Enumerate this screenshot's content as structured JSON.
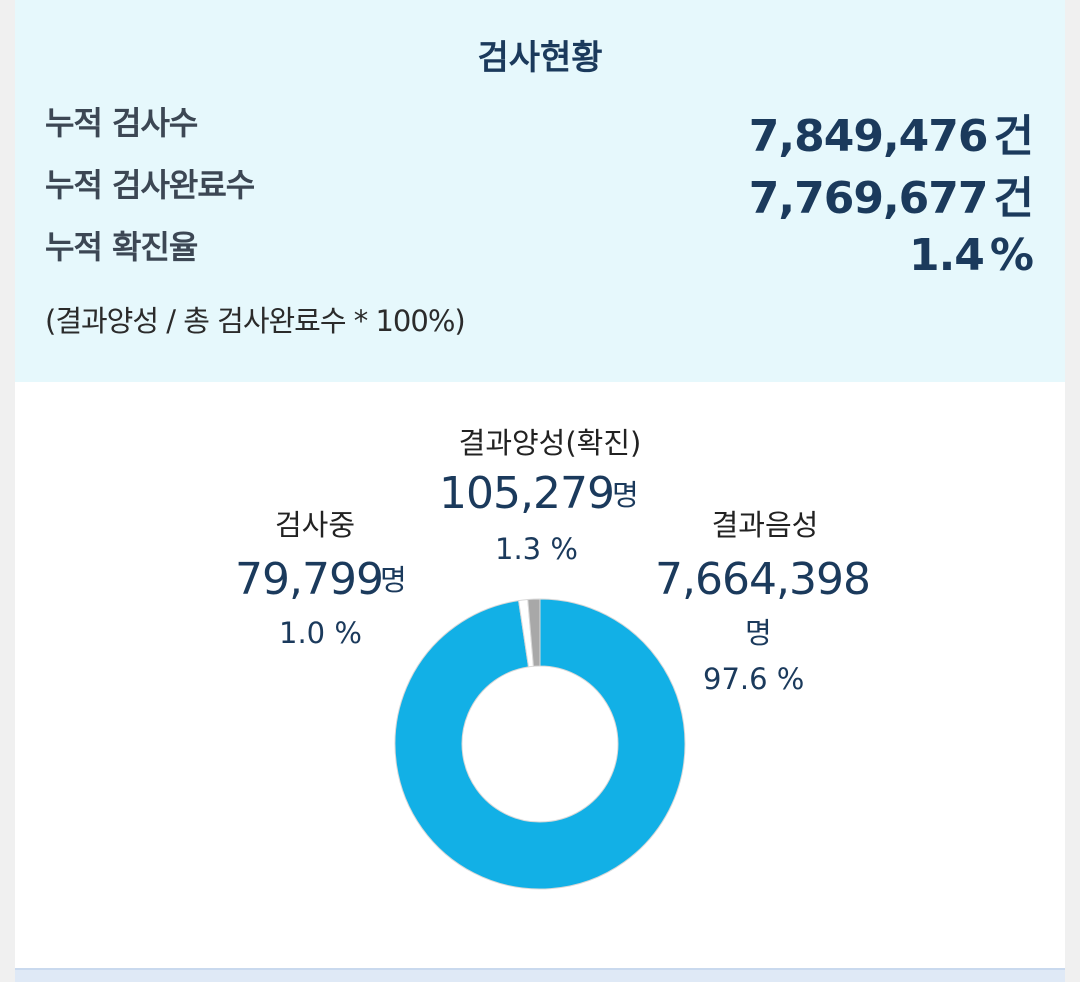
{
  "summary": {
    "title": "검사현황",
    "rows": [
      {
        "label": "누적 검사수",
        "value": "7,849,476",
        "unit": "건"
      },
      {
        "label": "누적 검사완료수",
        "value": "7,769,677",
        "unit": "건"
      },
      {
        "label": "누적 확진율",
        "value": "1.4",
        "unit": "%"
      }
    ],
    "formula": "(결과양성 / 총 검사완료수 * 100%)"
  },
  "chart_data": {
    "type": "pie",
    "donut": true,
    "categories": [
      "결과음성",
      "검사중",
      "결과양성(확진)"
    ],
    "values": [
      7664398,
      79799,
      105279
    ],
    "percents": [
      "97.6 %",
      "1.0 %",
      "1.3 %"
    ],
    "counts": [
      "7,664,398",
      "79,799",
      "105,279"
    ],
    "unit": "명",
    "colors": {
      "negative": "#12b0e6",
      "testing": "#ffffff",
      "positive": "#a8a8a8"
    }
  }
}
